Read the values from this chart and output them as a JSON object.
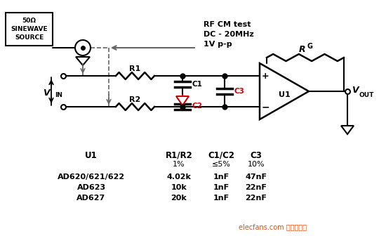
{
  "bg_color": "#ffffff",
  "rf_cm_text": "RF CM test\nDC - 20MHz\n1V p-p",
  "table_headers": [
    "U1",
    "R1/R2",
    "C1/C2",
    "C3"
  ],
  "table_sub": [
    "",
    "1%",
    "≤5%",
    "10%"
  ],
  "table_rows": [
    [
      "AD620/621/622",
      "4.02k",
      "1nF",
      "47nF"
    ],
    [
      "AD623",
      "10k",
      "1nF",
      "22nF"
    ],
    [
      "AD627",
      "20k",
      "1nF",
      "22nF"
    ]
  ],
  "watermark_text": "elecfans.com 电子发烧友",
  "line_color": "#000000",
  "red_color": "#cc0000",
  "dashed_color": "#666666"
}
